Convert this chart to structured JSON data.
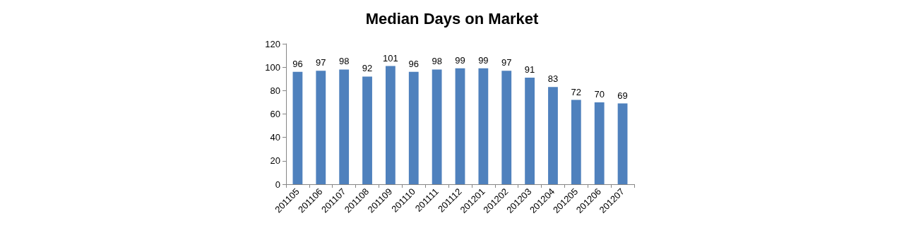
{
  "chart_data": {
    "type": "bar",
    "title": "Median Days on Market",
    "categories": [
      "201105",
      "201106",
      "201107",
      "201108",
      "201109",
      "201110",
      "201111",
      "201112",
      "201201",
      "201202",
      "201203",
      "201204",
      "201205",
      "201206",
      "201207"
    ],
    "values": [
      96,
      97,
      98,
      92,
      101,
      96,
      98,
      99,
      99,
      97,
      91,
      83,
      72,
      70,
      69
    ],
    "color": "#4f81bd",
    "ylim": [
      0,
      120
    ],
    "yticks": [
      0,
      20,
      40,
      60,
      80,
      100,
      120
    ],
    "grid": false,
    "data_labels": true
  }
}
